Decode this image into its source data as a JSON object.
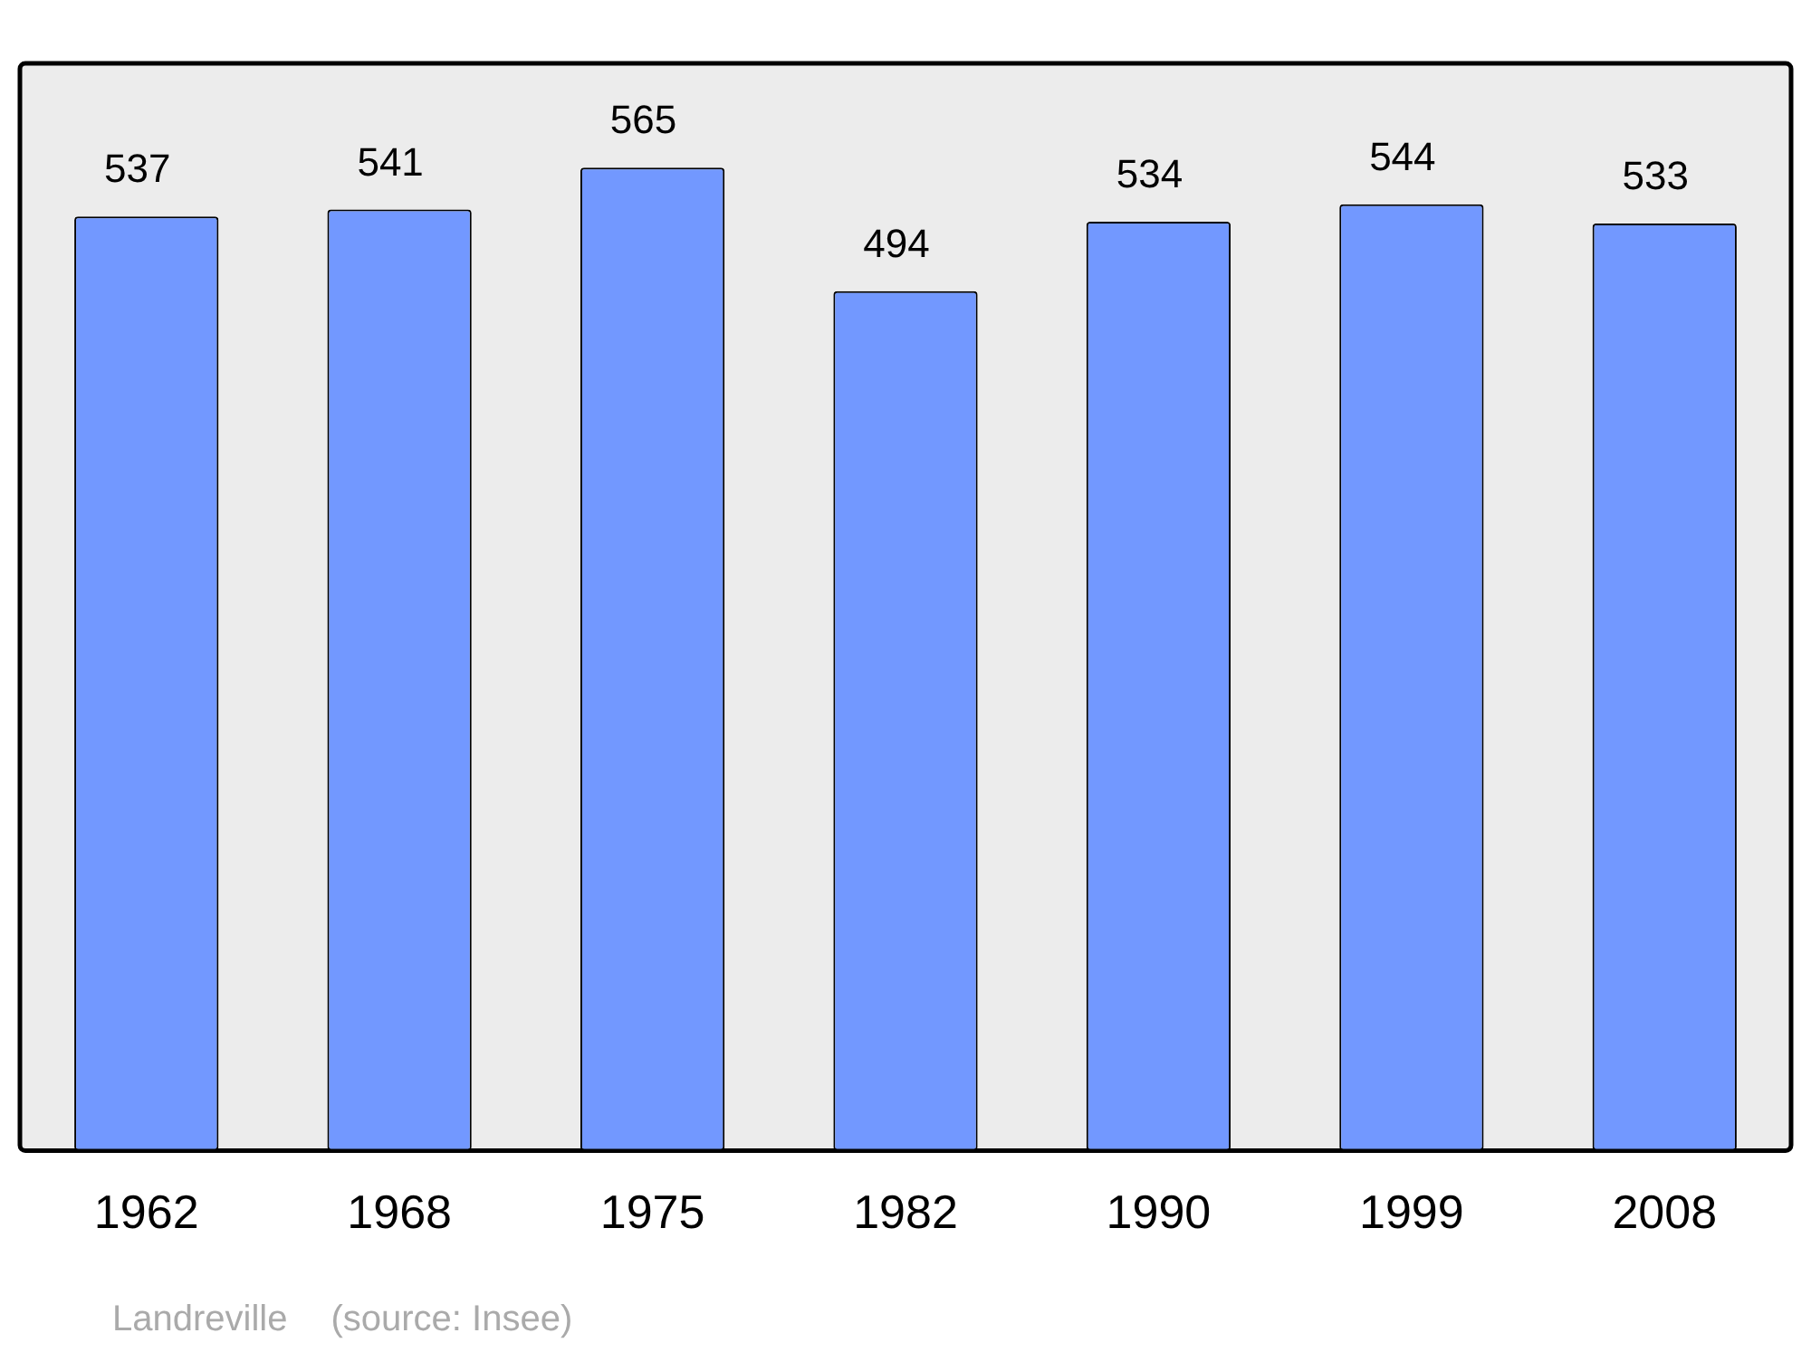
{
  "chart_data": {
    "type": "bar",
    "categories": [
      "1962",
      "1968",
      "1975",
      "1982",
      "1990",
      "1999",
      "2008"
    ],
    "values": [
      537,
      541,
      565,
      494,
      534,
      544,
      533
    ],
    "color": "#7298ff",
    "ylim": [
      0,
      625
    ],
    "data_labels": true,
    "grid": false,
    "legend": false,
    "annotations": [
      "Landreville",
      "(source: Insee)"
    ]
  }
}
